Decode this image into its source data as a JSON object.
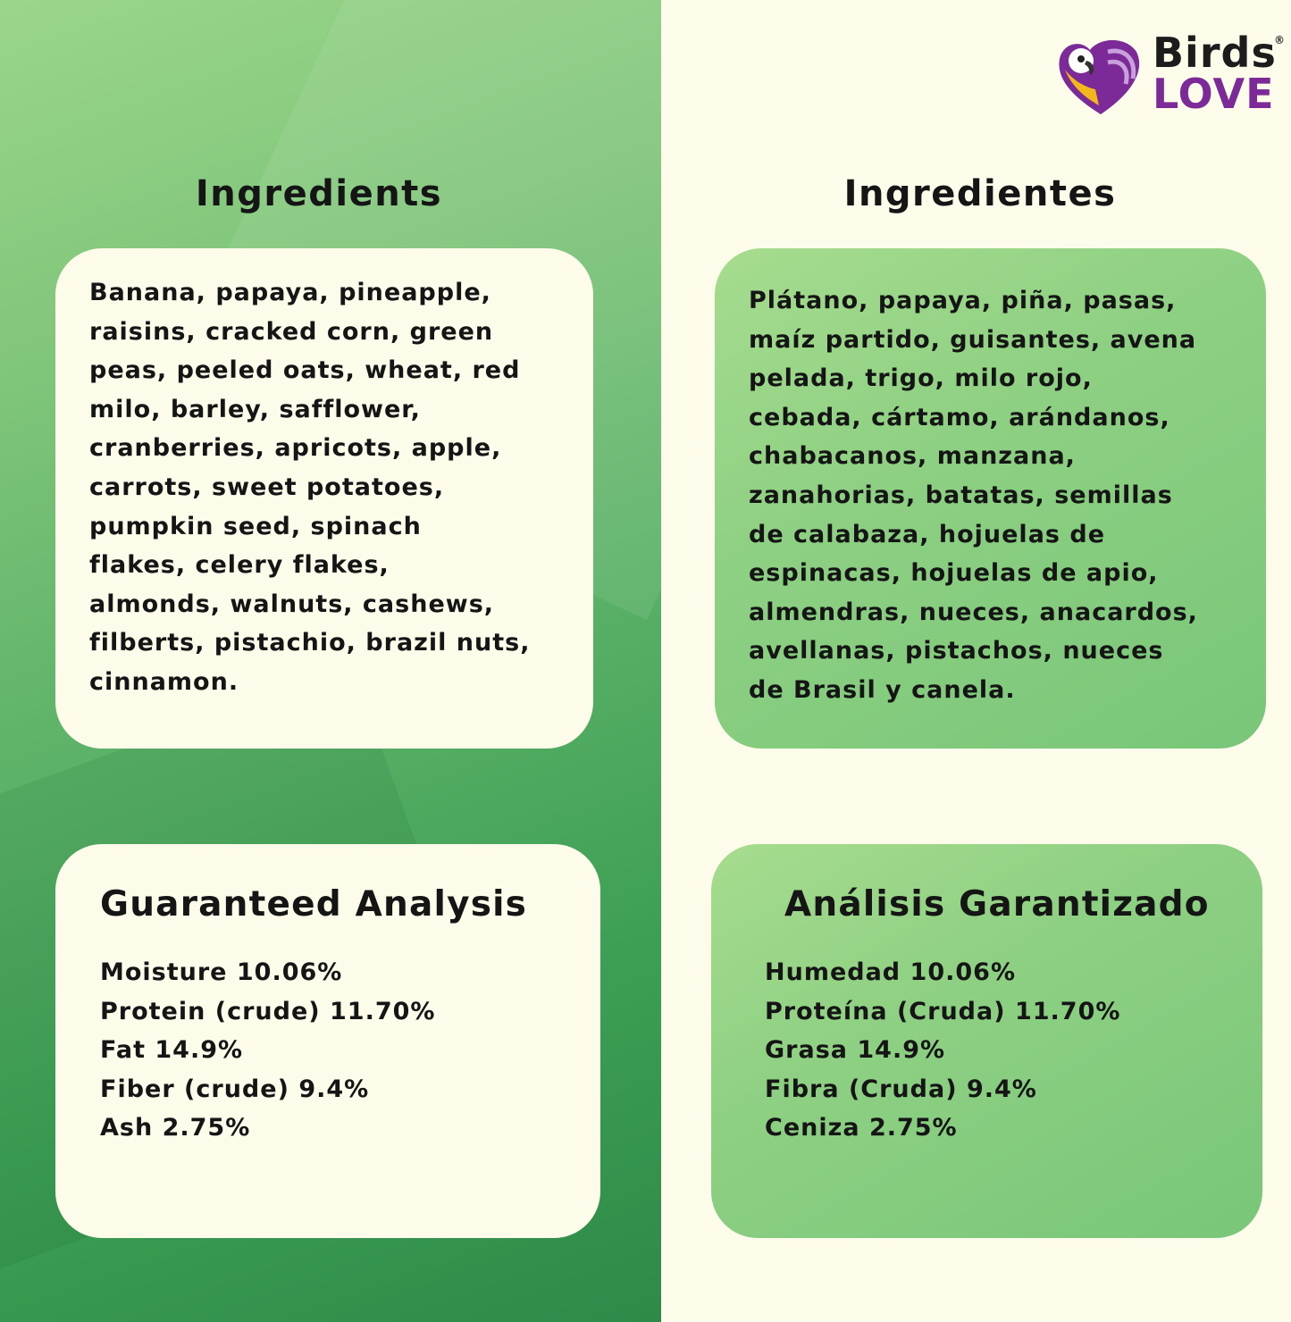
{
  "brand": {
    "name_line1": "Birds",
    "name_line2": "LOVE",
    "registered": "®",
    "colors": {
      "purple": "#7b2a97",
      "yellow": "#f3b71b"
    }
  },
  "english": {
    "ingredients_title": "Ingredients",
    "ingredients_lines": [
      "Banana, papaya, pineapple,",
      "raisins, cracked corn, green",
      "peas, peeled oats, wheat, red",
      "milo, barley, safflower,",
      "cranberries, apricots, apple,",
      "carrots, sweet potatoes,",
      "pumpkin seed, spinach",
      "flakes, celery flakes,",
      "almonds, walnuts, cashews,",
      "filberts, pistachio, brazil nuts,",
      "cinnamon."
    ],
    "analysis_title": "Guaranteed Analysis",
    "analysis_lines": [
      "Moisture  10.06%",
      "Protein (crude) 11.70%",
      "Fat 14.9%",
      "Fiber (crude)  9.4%",
      "Ash 2.75%"
    ]
  },
  "spanish": {
    "ingredients_title": "Ingredientes",
    "ingredients_lines": [
      "Plátano, papaya, piña, pasas,",
      "maíz partido, guisantes, avena",
      "pelada, trigo, milo rojo,",
      "cebada, cártamo, arándanos,",
      "chabacanos, manzana,",
      "zanahorias, batatas, semillas",
      "de calabaza, hojuelas de",
      "espinacas, hojuelas de apio,",
      "almendras, nueces, anacardos,",
      "avellanas, pistachos, nueces",
      "de Brasil y canela."
    ],
    "analysis_title": "Análisis Garantizado",
    "analysis_lines": [
      "Humedad  10.06%",
      "Proteína (Cruda) 11.70%",
      "Grasa 14.9%",
      "Fibra (Cruda) 9.4%",
      "Ceniza  2.75%"
    ]
  }
}
